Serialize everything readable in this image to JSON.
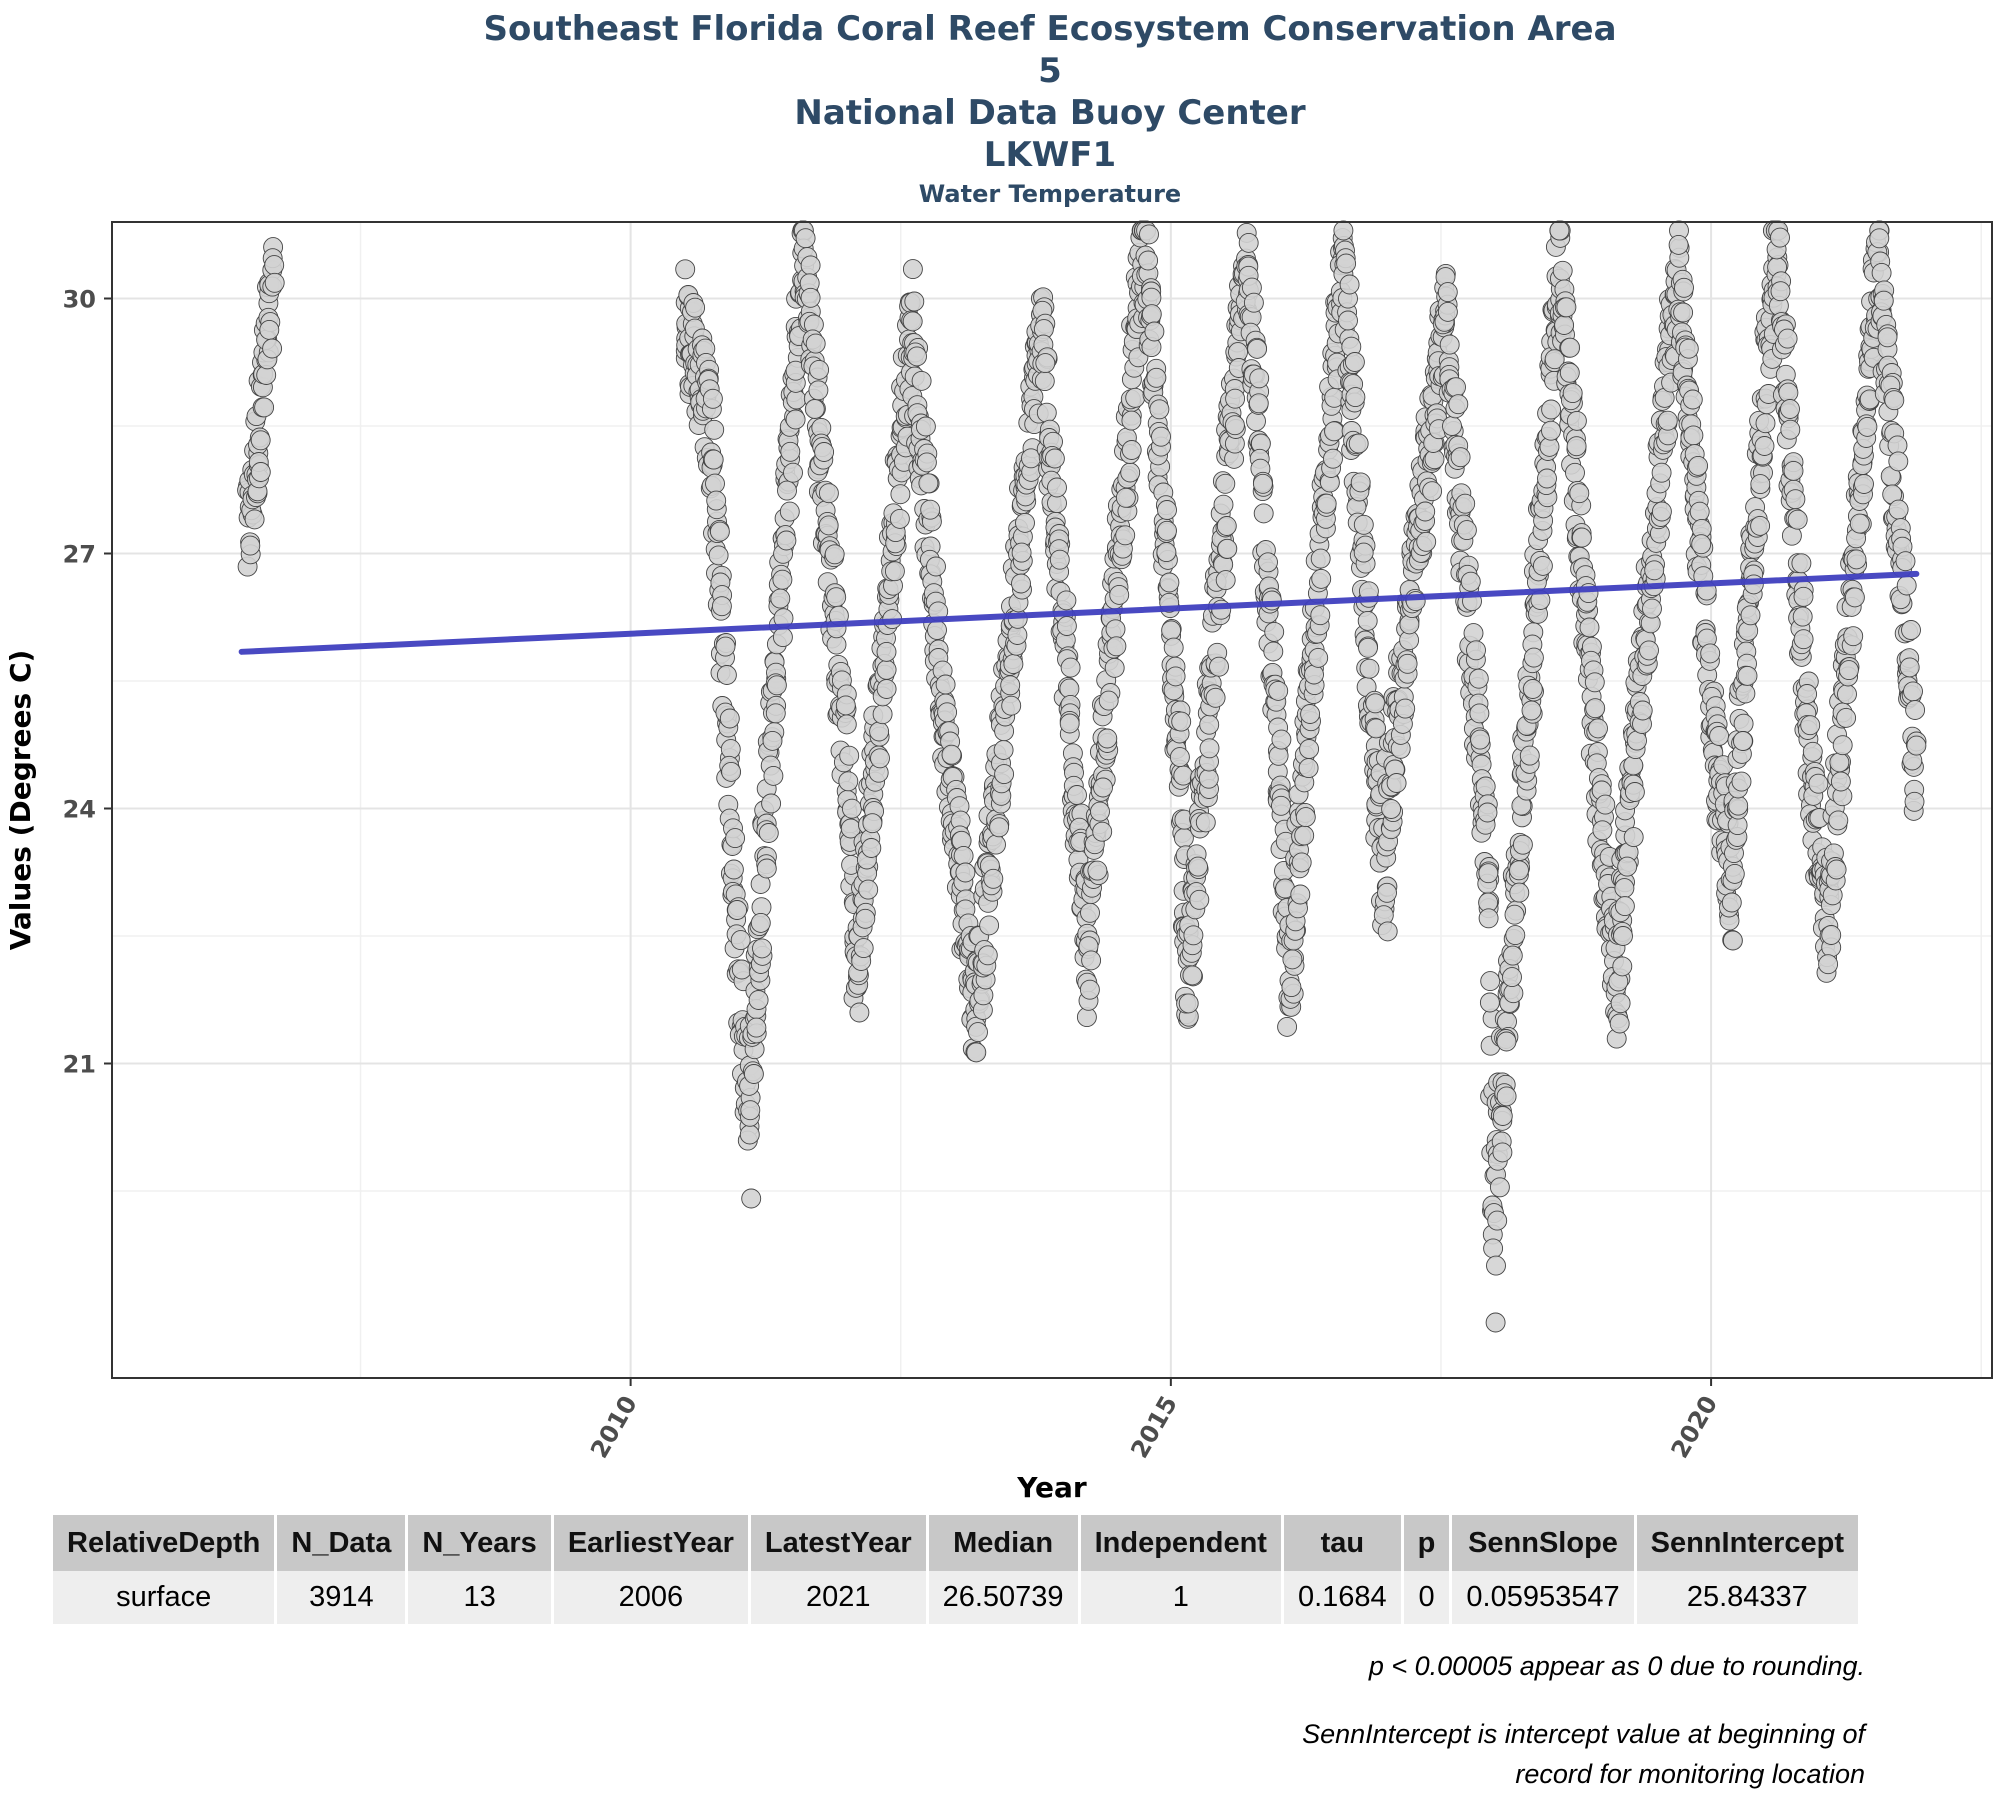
{
  "header": {
    "line1": "Southeast Florida Coral Reef Ecosystem Conservation Area",
    "line2": "5",
    "line3": "National Data Buoy Center",
    "line4": "LKWF1",
    "subtitle": "Water Temperature"
  },
  "chart_data": {
    "type": "scatter",
    "title": "Southeast Florida Coral Reef Ecosystem Conservation Area 5 National Data Buoy Center LKWF1",
    "subtitle": "Water Temperature",
    "xlabel": "Year",
    "ylabel": "Values (Degrees C)",
    "xlim": [
      2005.2,
      2022.6
    ],
    "ylim": [
      17.3,
      30.9
    ],
    "x_ticks": [
      2010,
      2015,
      2020
    ],
    "y_ticks": [
      21,
      24,
      27,
      30
    ],
    "grid": true,
    "point_color": "#d3d3d3",
    "trend_color": "#3f3fbf",
    "trend_line": {
      "x": [
        2006.4,
        2021.9
      ],
      "y": [
        25.84337,
        26.76
      ]
    },
    "seasonal_segments": [
      {
        "x": [
          2006.45,
          2006.7
        ],
        "y": [
          27.1,
          30.2
        ]
      },
      {
        "x": [
          2010.5,
          2010.75
        ],
        "y": [
          29.8,
          28.4
        ]
      },
      {
        "x": [
          2010.75,
          2011.1
        ],
        "y": [
          28.4,
          19.9
        ]
      },
      {
        "x": [
          2011.1,
          2011.6
        ],
        "y": [
          20.7,
          30.8
        ]
      },
      {
        "x": [
          2011.6,
          2012.0
        ],
        "y": [
          30.8,
          24.5
        ]
      },
      {
        "x": [
          2012.0,
          2012.1
        ],
        "y": [
          24.5,
          21.7
        ]
      },
      {
        "x": [
          2012.1,
          2012.6
        ],
        "y": [
          22.0,
          29.8
        ]
      },
      {
        "x": [
          2012.6,
          2012.9
        ],
        "y": [
          29.8,
          25.0
        ]
      },
      {
        "x": [
          2012.9,
          2013.2
        ],
        "y": [
          25.0,
          21.6
        ]
      },
      {
        "x": [
          2013.2,
          2013.8
        ],
        "y": [
          21.6,
          29.7
        ]
      },
      {
        "x": [
          2013.8,
          2014.1
        ],
        "y": [
          29.7,
          24.5
        ]
      },
      {
        "x": [
          2014.1,
          2014.25
        ],
        "y": [
          24.5,
          21.8
        ]
      },
      {
        "x": [
          2014.25,
          2014.75
        ],
        "y": [
          22.5,
          30.8
        ]
      },
      {
        "x": [
          2014.75,
          2015.1
        ],
        "y": [
          30.8,
          24.2
        ]
      },
      {
        "x": [
          2015.1,
          2015.15
        ],
        "y": [
          24.2,
          21.5
        ]
      },
      {
        "x": [
          2015.15,
          2015.7
        ],
        "y": [
          21.8,
          30.7
        ]
      },
      {
        "x": [
          2015.7,
          2016.0
        ],
        "y": [
          30.7,
          24.5
        ]
      },
      {
        "x": [
          2016.0,
          2016.1
        ],
        "y": [
          24.5,
          21.7
        ]
      },
      {
        "x": [
          2016.1,
          2016.6
        ],
        "y": [
          22.0,
          30.5
        ]
      },
      {
        "x": [
          2016.6,
          2016.9
        ],
        "y": [
          30.5,
          24.3
        ]
      },
      {
        "x": [
          2016.9,
          2017.0
        ],
        "y": [
          24.3,
          22.7
        ]
      },
      {
        "x": [
          2017.0,
          2017.55
        ],
        "y": [
          24.0,
          29.9
        ]
      },
      {
        "x": [
          2017.55,
          2017.95
        ],
        "y": [
          29.9,
          23.0
        ]
      },
      {
        "x": [
          2017.95,
          2018.0
        ],
        "y": [
          23.0,
          17.8
        ]
      },
      {
        "x": [
          2018.0,
          2018.6
        ],
        "y": [
          19.5,
          30.5
        ]
      },
      {
        "x": [
          2018.6,
          2019.0
        ],
        "y": [
          30.5,
          23.5
        ]
      },
      {
        "x": [
          2019.0,
          2019.15
        ],
        "y": [
          23.5,
          21.8
        ]
      },
      {
        "x": [
          2019.15,
          2019.7
        ],
        "y": [
          22.5,
          30.4
        ]
      },
      {
        "x": [
          2019.7,
          2020.05
        ],
        "y": [
          30.4,
          24.5
        ]
      },
      {
        "x": [
          2020.05,
          2020.2
        ],
        "y": [
          24.5,
          22.9
        ]
      },
      {
        "x": [
          2020.2,
          2020.6
        ],
        "y": [
          23.5,
          30.8
        ]
      },
      {
        "x": [
          2020.6,
          2020.95
        ],
        "y": [
          30.8,
          24.0
        ]
      },
      {
        "x": [
          2020.95,
          2021.1
        ],
        "y": [
          24.0,
          22.4
        ]
      },
      {
        "x": [
          2021.1,
          2021.55
        ],
        "y": [
          23.0,
          30.6
        ]
      },
      {
        "x": [
          2021.55,
          2021.9
        ],
        "y": [
          30.6,
          24.4
        ]
      }
    ]
  },
  "table": {
    "headers": [
      "RelativeDepth",
      "N_Data",
      "N_Years",
      "EarliestYear",
      "LatestYear",
      "Median",
      "Independent",
      "tau",
      "p",
      "SennSlope",
      "SennIntercept"
    ],
    "row": [
      "surface",
      "3914",
      "13",
      "2006",
      "2021",
      "26.50739",
      "1",
      "0.1684",
      "0",
      "0.05953547",
      "25.84337"
    ]
  },
  "notes": {
    "note1": "p < 0.00005 appear as 0 due to rounding.",
    "note2a": "SennIntercept is intercept value at beginning of",
    "note2b": "record for monitoring location"
  }
}
